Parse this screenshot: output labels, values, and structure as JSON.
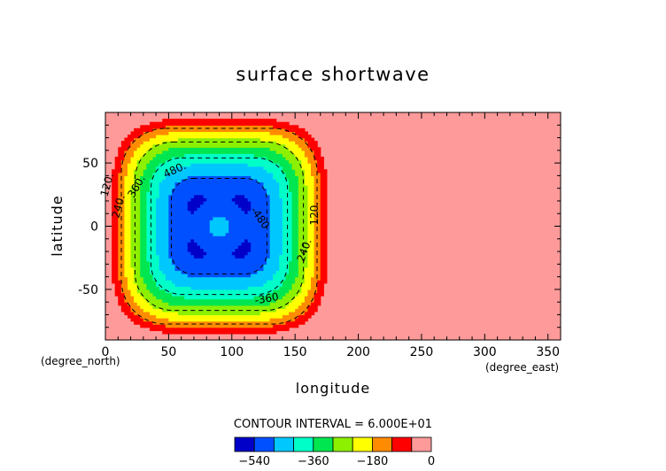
{
  "chart_data": {
    "type": "heatmap",
    "title": "surface shortwave",
    "xlabel": "longitude",
    "ylabel": "latitude",
    "xunit": "(degree_east)",
    "yunit": "(degree_north)",
    "xlim": [
      0,
      360
    ],
    "ylim": [
      -90,
      90
    ],
    "xticks": [
      0,
      50,
      100,
      150,
      200,
      250,
      300,
      350
    ],
    "yticks": [
      -50,
      0,
      50
    ],
    "contour_interval_text": "CONTOUR INTERVAL = 6.000E+01",
    "contour_interval": 60,
    "field": {
      "center_lon": 90,
      "center_lat": 0,
      "lit_lon_range": [
        0,
        180
      ],
      "min_value": -600,
      "ring_radius_deg": 42,
      "center_plateau": -460,
      "outside_value": 0
    },
    "contour_labels": [
      "120.",
      "240.",
      "360.",
      "480.",
      "-480",
      "120.",
      "240.",
      "-360"
    ],
    "colorbar": {
      "levels": [
        -600,
        -540,
        -480,
        -420,
        -360,
        -300,
        -240,
        -180,
        -120,
        -60,
        0
      ],
      "tick_labels": [
        "-540",
        "-360",
        "-180",
        "0"
      ],
      "tick_values": [
        -540,
        -360,
        -180,
        0
      ],
      "colors": [
        "#0000c8",
        "#0050ff",
        "#00c8ff",
        "#00ffc8",
        "#00e650",
        "#8cf000",
        "#ffff00",
        "#ff8c00",
        "#ff0000",
        "#ff9a9a"
      ]
    }
  }
}
